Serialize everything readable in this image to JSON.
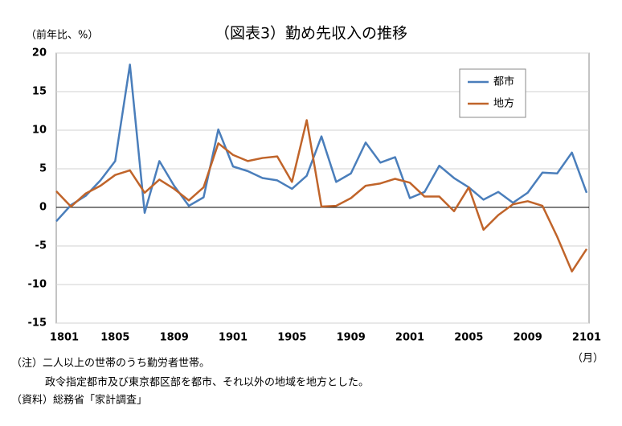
{
  "chart_data": {
    "type": "line",
    "title": "（図表3）勤め先収入の推移",
    "y_label": "（前年比、%）",
    "x_label": "（月）",
    "categories": [
      "1801",
      null,
      null,
      null,
      "1805",
      null,
      null,
      null,
      "1809",
      null,
      null,
      null,
      "1901",
      null,
      null,
      null,
      "1905",
      null,
      null,
      null,
      "1909",
      null,
      null,
      null,
      "2001",
      null,
      null,
      null,
      "2005",
      null,
      null,
      null,
      "2009",
      null,
      null,
      null,
      "2101"
    ],
    "series": [
      {
        "name": "都市",
        "color": "#4a7ebb",
        "values": [
          -1.8,
          0.3,
          1.5,
          3.5,
          6.0,
          18.5,
          -0.7,
          6.0,
          2.8,
          0.2,
          1.3,
          10.1,
          5.3,
          4.7,
          3.8,
          3.5,
          2.4,
          4.1,
          9.2,
          3.3,
          4.4,
          8.4,
          5.8,
          6.5,
          1.2,
          2.0,
          5.4,
          3.8,
          2.6,
          1.0,
          2.0,
          0.6,
          1.9,
          4.5,
          4.4,
          7.1,
          1.9
        ]
      },
      {
        "name": "地方",
        "color": "#c0642a",
        "values": [
          2.1,
          0.1,
          1.8,
          2.8,
          4.2,
          4.8,
          1.9,
          3.6,
          2.4,
          0.9,
          2.6,
          8.3,
          6.8,
          6.0,
          6.4,
          6.6,
          3.3,
          11.3,
          0.1,
          0.2,
          1.2,
          2.8,
          3.1,
          3.7,
          3.2,
          1.4,
          1.4,
          -0.5,
          2.6,
          -2.9,
          -1.0,
          0.4,
          0.8,
          0.2,
          -3.8,
          -8.3,
          -5.4
        ]
      }
    ],
    "ylim": [
      -15,
      20
    ],
    "yticks": [
      -15,
      -10,
      -5,
      0,
      5,
      10,
      15,
      20
    ],
    "grid": true,
    "legend": "top-right",
    "notes": [
      "（注）二人以上の世帯のうち勤労者世帯。",
      "政令指定都市及び東京都区部を都市、それ以外の地域を地方とした。",
      "（資料）総務省「家計調査」"
    ]
  }
}
